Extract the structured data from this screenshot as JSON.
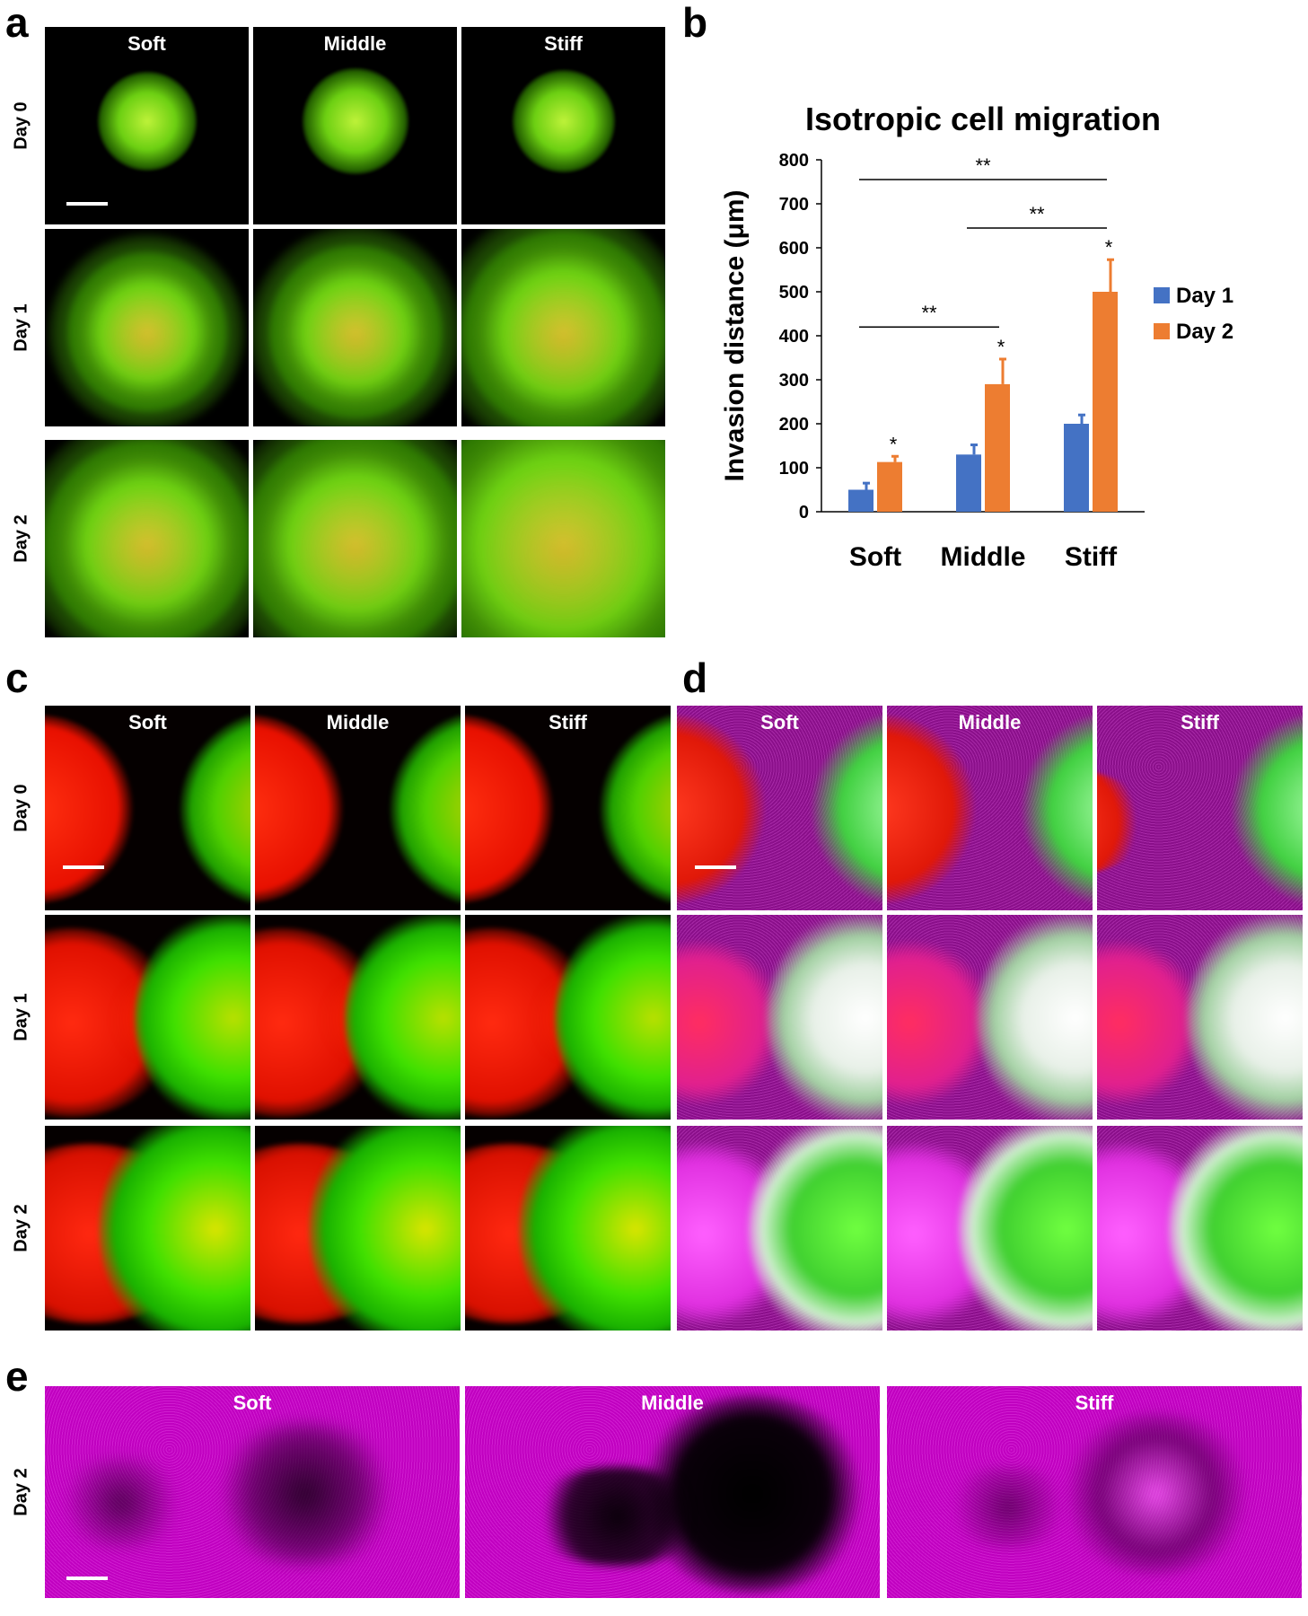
{
  "panels": {
    "a": {
      "letter": "a",
      "columns": [
        "Soft",
        "Middle",
        "Stiff"
      ],
      "rows": [
        "Day 0",
        "Day 1",
        "Day 2"
      ]
    },
    "b": {
      "letter": "b"
    },
    "c": {
      "letter": "c",
      "columns": [
        "Soft",
        "Middle",
        "Stiff"
      ],
      "rows": [
        "Day 0",
        "Day 1",
        "Day 2"
      ]
    },
    "d": {
      "letter": "d",
      "columns": [
        "Soft",
        "Middle",
        "Stiff"
      ]
    },
    "e": {
      "letter": "e",
      "columns": [
        "Soft",
        "Middle",
        "Stiff"
      ],
      "rows": [
        "Day 2"
      ]
    }
  },
  "colors": {
    "day1": "#4472c4",
    "day2": "#ed7d31",
    "green": "#33ff00",
    "red": "#ff1a00",
    "magenta": "#ff00ff"
  },
  "chart_data": {
    "type": "bar",
    "title": "Isotropic cell migration",
    "xlabel": "",
    "ylabel": "Invasion distance (μm)",
    "categories": [
      "Soft",
      "Middle",
      "Stiff"
    ],
    "ylim": [
      0,
      800
    ],
    "yticks": [
      "0",
      "100",
      "200",
      "300",
      "400",
      "500",
      "600",
      "700",
      "800"
    ],
    "legend_position": "right",
    "series": [
      {
        "name": "Day 1",
        "values": [
          50,
          130,
          200
        ],
        "errors": [
          15,
          22,
          20
        ]
      },
      {
        "name": "Day 2",
        "values": [
          113,
          290,
          500
        ],
        "errors": [
          13,
          57,
          73
        ]
      }
    ],
    "point_annotations": [
      {
        "category": "Soft",
        "series": "Day 2",
        "label": "*"
      },
      {
        "category": "Middle",
        "series": "Day 2",
        "label": "*"
      },
      {
        "category": "Stiff",
        "series": "Day 2",
        "label": "*"
      }
    ],
    "brackets": [
      {
        "from": "Soft",
        "to": "Stiff",
        "label": "**"
      },
      {
        "from": "Middle",
        "to": "Stiff",
        "label": "**"
      },
      {
        "from": "Soft",
        "to": "Middle",
        "label": "**"
      }
    ]
  }
}
